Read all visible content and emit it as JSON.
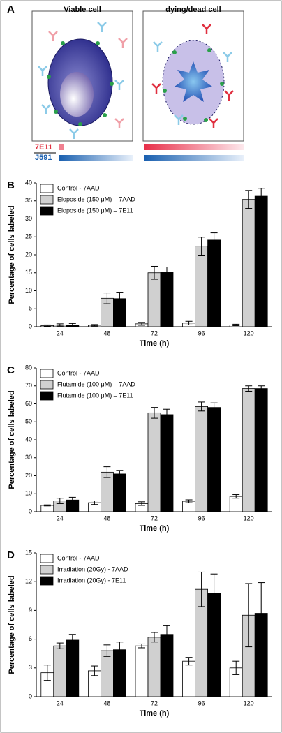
{
  "panel_a": {
    "label": "A",
    "cells": [
      {
        "title": "Viable cell"
      },
      {
        "title": "dying/dead cell"
      }
    ],
    "markers": [
      "7E11",
      "J591"
    ]
  },
  "chart_data": [
    {
      "type": "bar",
      "panel_label": "B",
      "y_label": "Percentage of cells labeled",
      "x_label": "Time (h)",
      "categories": [
        "24",
        "48",
        "72",
        "96",
        "120"
      ],
      "ylim": [
        0,
        40
      ],
      "yticks": [
        0,
        5,
        10,
        15,
        20,
        25,
        30,
        35,
        40
      ],
      "series": [
        {
          "name": "Control - 7AAD",
          "color": "#ffffff",
          "values": [
            0.3,
            0.4,
            0.8,
            1.0,
            0.5
          ],
          "errors": [
            0.2,
            0.2,
            0.4,
            0.5,
            0.2
          ]
        },
        {
          "name": "Eloposide (150 μM) – 7AAD",
          "color": "#d0d0d0",
          "values": [
            0.5,
            7.9,
            15.0,
            22.4,
            35.4
          ],
          "errors": [
            0.3,
            1.5,
            1.8,
            2.5,
            2.5
          ]
        },
        {
          "name": "Eloposide (150 μM) – 7E11",
          "color": "#000000",
          "values": [
            0.5,
            7.8,
            15.1,
            24.1,
            36.3
          ],
          "errors": [
            0.4,
            1.8,
            1.5,
            2.0,
            2.2
          ]
        }
      ]
    },
    {
      "type": "bar",
      "panel_label": "C",
      "y_label": "Percentage of cells labeled",
      "x_label": "Time (h)",
      "categories": [
        "24",
        "48",
        "72",
        "96",
        "120"
      ],
      "ylim": [
        0,
        80
      ],
      "yticks": [
        0,
        10,
        20,
        30,
        40,
        50,
        60,
        70,
        80
      ],
      "series": [
        {
          "name": "Control - 7AAD",
          "color": "#ffffff",
          "values": [
            3.5,
            5,
            4.5,
            5.8,
            8.5
          ],
          "errors": [
            0.3,
            1,
            1,
            0.8,
            1
          ]
        },
        {
          "name": "Flutamide (100 μM) – 7AAD",
          "color": "#d0d0d0",
          "values": [
            6,
            22,
            55,
            58.5,
            68.5
          ],
          "errors": [
            1.5,
            3,
            3,
            2.5,
            1.5
          ]
        },
        {
          "name": "Flutamide (100 μM) – 7E11",
          "color": "#000000",
          "values": [
            6.5,
            21,
            54,
            58,
            68.5
          ],
          "errors": [
            1.5,
            2,
            3,
            2.5,
            1.5
          ]
        }
      ]
    },
    {
      "type": "bar",
      "panel_label": "D",
      "y_label": "Percentage of cells labeled",
      "x_label": "Time (h)",
      "categories": [
        "24",
        "48",
        "72",
        "96",
        "120"
      ],
      "ylim": [
        0,
        15
      ],
      "yticks": [
        0,
        3,
        6,
        9,
        12,
        15
      ],
      "series": [
        {
          "name": "Control - 7AAD",
          "color": "#ffffff",
          "values": [
            2.5,
            2.7,
            5.3,
            3.7,
            3.0
          ],
          "errors": [
            0.8,
            0.5,
            0.2,
            0.4,
            0.7
          ]
        },
        {
          "name": "Irradiation (20Gy) - 7AAD",
          "color": "#d0d0d0",
          "values": [
            5.3,
            4.8,
            6.2,
            11.2,
            8.5
          ],
          "errors": [
            0.3,
            0.6,
            0.5,
            1.8,
            3.3
          ]
        },
        {
          "name": "Irradiation (20Gy) - 7E11",
          "color": "#000000",
          "values": [
            5.9,
            4.9,
            6.5,
            10.8,
            8.7
          ],
          "errors": [
            0.6,
            0.8,
            0.9,
            2.0,
            3.2
          ]
        }
      ]
    }
  ]
}
